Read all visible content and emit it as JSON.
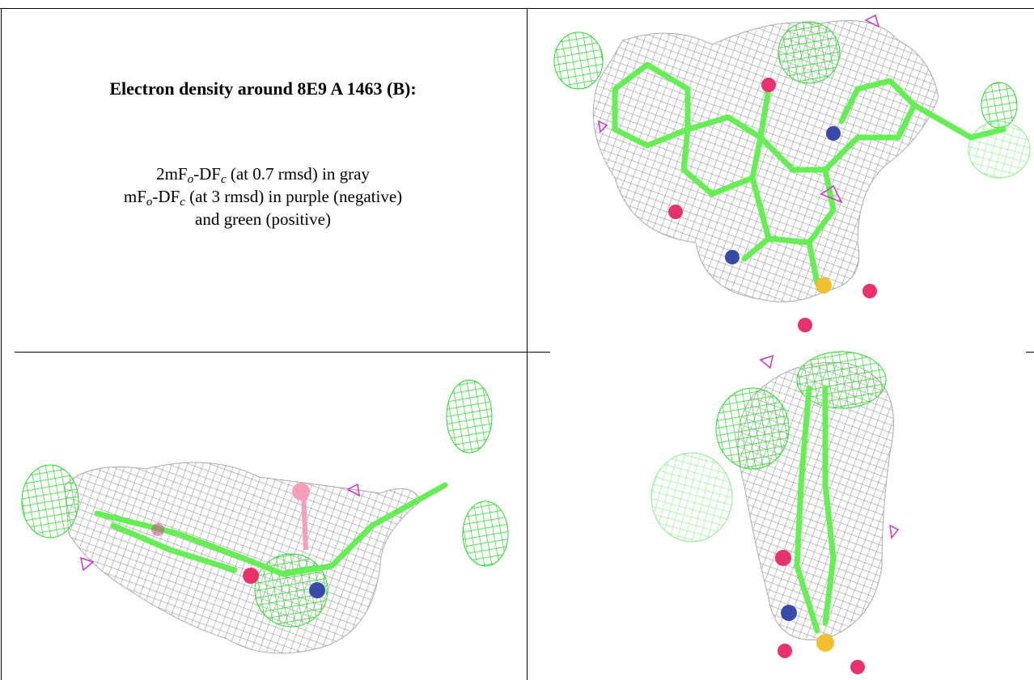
{
  "header": {
    "title": "Electron density around 8E9 A 1463 (B):"
  },
  "legend": {
    "lines": [
      [
        "2mF",
        "o",
        "-DF",
        "c",
        " (at 0.7 rmsd) in gray"
      ],
      [
        "mF",
        "o",
        "-DF",
        "c",
        " (at 3 rmsd) in purple (negative)"
      ],
      [
        "and green (positive)"
      ]
    ]
  }
}
